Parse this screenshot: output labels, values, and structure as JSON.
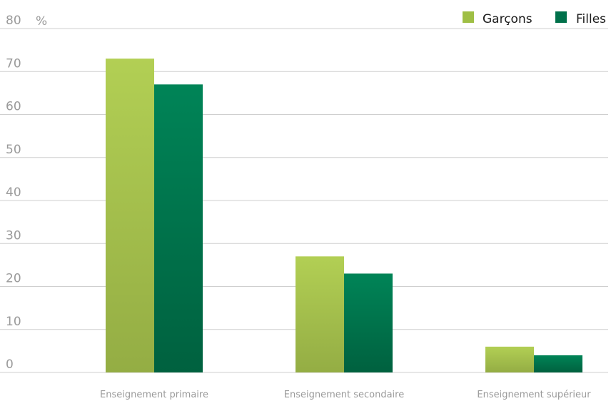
{
  "chart_data": {
    "type": "bar",
    "unit": "%",
    "categories": [
      "Enseignement primaire",
      "Enseignement secondaire",
      "Enseignement supérieur"
    ],
    "series": [
      {
        "name": "Garçons",
        "values": [
          73,
          27,
          6
        ],
        "color": "#9fbf45"
      },
      {
        "name": "Filles",
        "values": [
          67,
          23,
          4
        ],
        "color": "#00704a"
      }
    ],
    "yticks": [
      0,
      10,
      20,
      30,
      40,
      50,
      60,
      70,
      80
    ],
    "ylim": [
      0,
      80
    ],
    "grid": true,
    "legend_position": "top-right"
  }
}
